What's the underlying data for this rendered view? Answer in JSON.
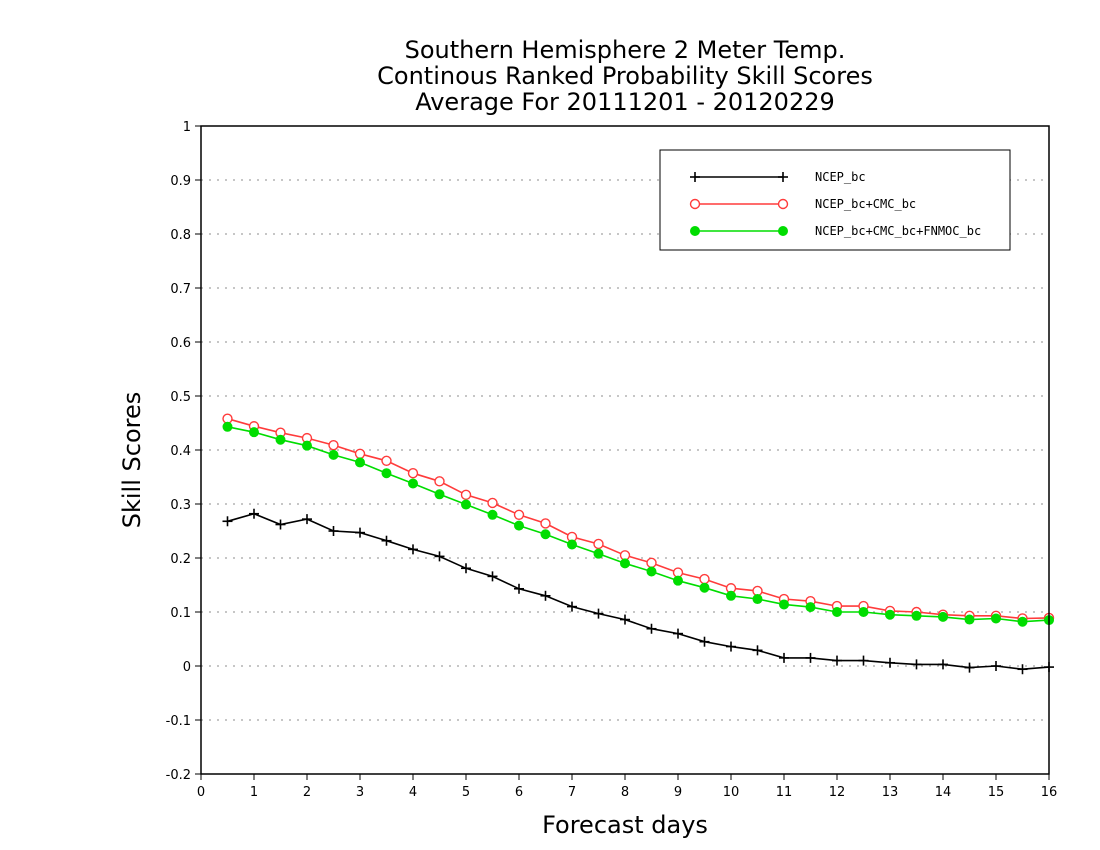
{
  "chart_data": {
    "type": "line",
    "title_lines": [
      "Southern Hemisphere 2 Meter Temp.",
      "Continous Ranked Probability Skill Scores",
      "Average For 20111201 - 20120229"
    ],
    "xlabel": "Forecast days",
    "ylabel": "Skill Scores",
    "xlim": [
      0,
      16
    ],
    "ylim": [
      -0.2,
      1
    ],
    "x_ticks": [
      "0",
      "1",
      "2",
      "3",
      "4",
      "5",
      "6",
      "7",
      "8",
      "9",
      "10",
      "11",
      "12",
      "13",
      "14",
      "15",
      "16"
    ],
    "y_ticks": [
      "-0.2",
      "-0.1",
      "0",
      "0.1",
      "0.2",
      "0.3",
      "0.4",
      "0.5",
      "0.6",
      "0.7",
      "0.8",
      "0.9",
      "1"
    ],
    "grid": "horizontal dotted",
    "legend_position": "top-right",
    "x": [
      0.5,
      1,
      1.5,
      2,
      2.5,
      3,
      3.5,
      4,
      4.5,
      5,
      5.5,
      6,
      6.5,
      7,
      7.5,
      8,
      8.5,
      9,
      9.5,
      10,
      10.5,
      11,
      11.5,
      12,
      12.5,
      13,
      13.5,
      14,
      14.5,
      15,
      15.5,
      16
    ],
    "series": [
      {
        "name": "NCEP_bc",
        "color": "#000000",
        "marker": "plus",
        "values": [
          0.268,
          0.282,
          0.262,
          0.272,
          0.25,
          0.247,
          0.232,
          0.216,
          0.203,
          0.181,
          0.166,
          0.143,
          0.13,
          0.11,
          0.097,
          0.086,
          0.069,
          0.06,
          0.045,
          0.036,
          0.029,
          0.015,
          0.015,
          0.01,
          0.01,
          0.006,
          0.003,
          0.003,
          -0.003,
          0.0,
          -0.006,
          -0.002
        ]
      },
      {
        "name": "NCEP_bc+CMC_bc",
        "color": "#ff3b3b",
        "marker": "open-circle",
        "values": [
          0.458,
          0.444,
          0.432,
          0.422,
          0.409,
          0.393,
          0.38,
          0.357,
          0.342,
          0.317,
          0.302,
          0.28,
          0.264,
          0.239,
          0.226,
          0.205,
          0.191,
          0.173,
          0.161,
          0.144,
          0.139,
          0.124,
          0.12,
          0.111,
          0.111,
          0.102,
          0.1,
          0.095,
          0.093,
          0.093,
          0.088,
          0.089
        ]
      },
      {
        "name": "NCEP_bc+CMC_bc+FNMOC_bc",
        "color": "#00dd00",
        "marker": "filled-circle",
        "values": [
          0.443,
          0.433,
          0.419,
          0.408,
          0.391,
          0.377,
          0.357,
          0.338,
          0.318,
          0.299,
          0.28,
          0.26,
          0.244,
          0.225,
          0.208,
          0.19,
          0.175,
          0.158,
          0.145,
          0.13,
          0.124,
          0.114,
          0.109,
          0.1,
          0.1,
          0.095,
          0.093,
          0.091,
          0.086,
          0.088,
          0.082,
          0.085
        ]
      }
    ]
  }
}
